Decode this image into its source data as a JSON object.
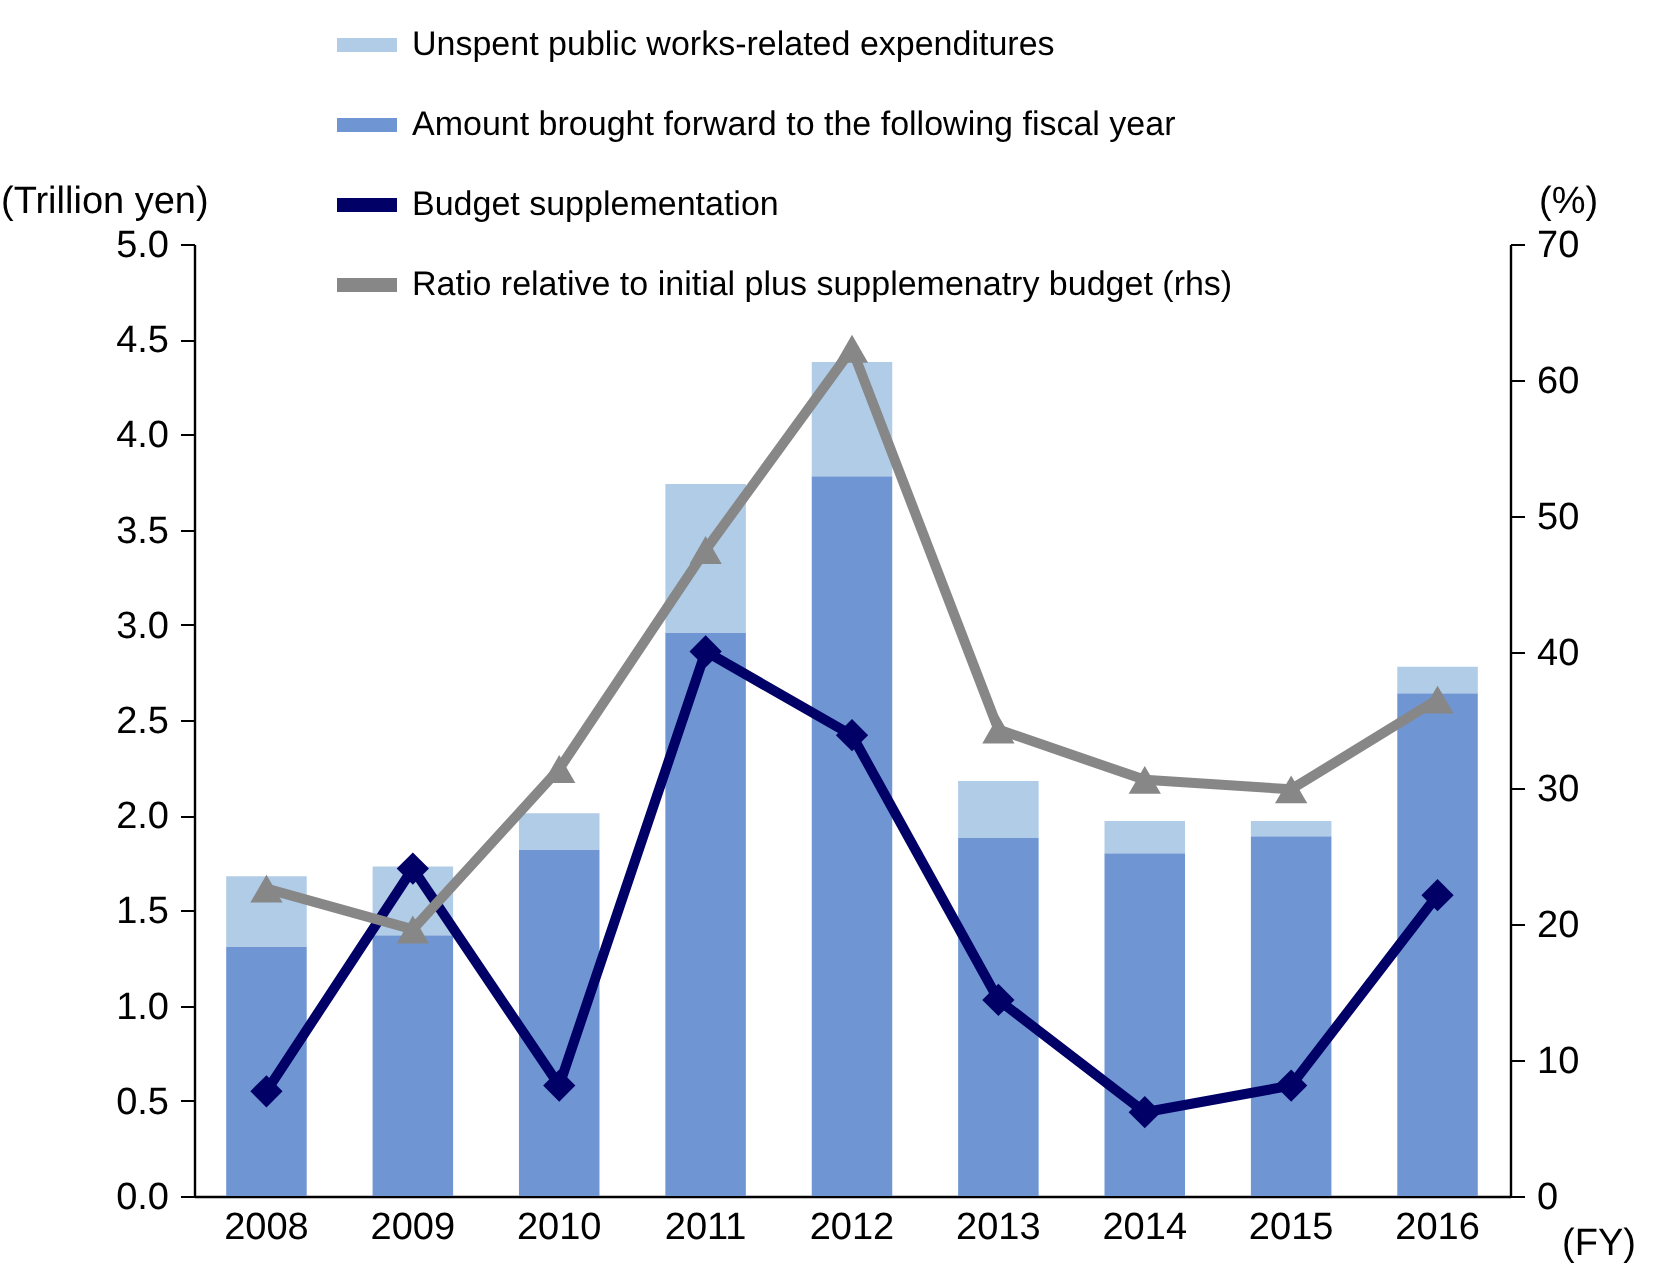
{
  "chart_data": {
    "type": "bar",
    "stacked": true,
    "ylabel": "(Trillion yen)",
    "y2label": "(%)",
    "xlabel": "(FY)",
    "categories": [
      "2008",
      "2009",
      "2010",
      "2011",
      "2012",
      "2013",
      "2014",
      "2015",
      "2016"
    ],
    "series": [
      {
        "name": "Amount brought forward to the following fiscal year",
        "color": "#6f96d3",
        "values": [
          1.31,
          1.37,
          1.82,
          2.96,
          3.78,
          1.88,
          1.8,
          1.89,
          2.64
        ]
      },
      {
        "name": "Unspent public works-related expenditures",
        "color": "#b0cce6",
        "values": [
          0.37,
          0.36,
          0.19,
          0.78,
          0.6,
          0.3,
          0.17,
          0.08,
          0.14
        ]
      },
      {
        "name": "Budget supplementation",
        "type": "line",
        "marker": "diamond",
        "color": "#000066",
        "values": [
          0.55,
          1.72,
          0.58,
          2.86,
          2.42,
          1.03,
          0.44,
          0.58,
          1.58
        ]
      },
      {
        "name": "Ratio relative to initial plus supplemenatry budget (rhs)",
        "type": "line",
        "marker": "triangle",
        "axis": "y2",
        "color": "#878787",
        "values": [
          22.6,
          19.6,
          31.4,
          47.5,
          62.3,
          34.3,
          30.6,
          29.9,
          36.5
        ]
      }
    ],
    "ylim": [
      0,
      5
    ],
    "yticks": [
      {
        "value": 0,
        "label": "0.0"
      },
      {
        "value": 0.5,
        "label": "0.5"
      },
      {
        "value": 1,
        "label": "1.0"
      },
      {
        "value": 1.5,
        "label": "1.5"
      },
      {
        "value": 2,
        "label": "2.0"
      },
      {
        "value": 2.5,
        "label": "2.5"
      },
      {
        "value": 3,
        "label": "3.0"
      },
      {
        "value": 3.5,
        "label": "3.5"
      },
      {
        "value": 4,
        "label": "4.0"
      },
      {
        "value": 4.5,
        "label": "4.5"
      },
      {
        "value": 5,
        "label": "5.0"
      }
    ],
    "y2lim": [
      0,
      70
    ],
    "y2ticks": [
      0,
      10,
      20,
      30,
      40,
      50,
      60,
      70
    ],
    "grid": false,
    "legend": "top"
  }
}
